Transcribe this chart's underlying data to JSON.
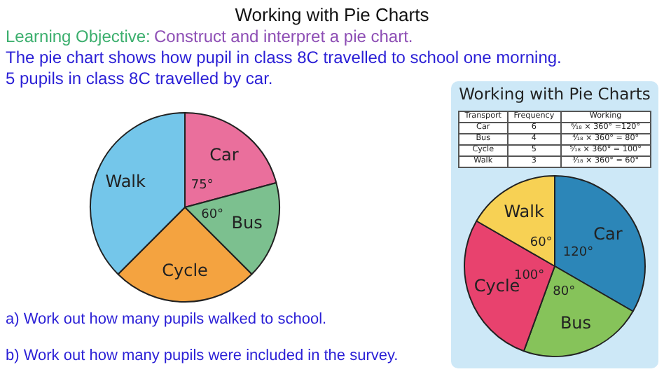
{
  "chart_data": [
    {
      "type": "pie",
      "title": "Working with Pie Charts",
      "categories": [
        "Car",
        "Bus",
        "Cycle",
        "Walk"
      ],
      "values": [
        75,
        60,
        90,
        135
      ],
      "colors": [
        "#ea6f9c",
        "#7cc08f",
        "#f4a340",
        "#74c6ea"
      ],
      "value_labels": [
        "75°",
        "60°",
        null,
        null
      ],
      "legend": false,
      "annotations": [
        "Learning Objective:",
        "Construct and interpret a pie chart.",
        "The pie chart shows how pupil in class 8C travelled to school one morning.",
        "5 pupils in class 8C travelled by car.",
        "a) Work out how many pupils walked to school.",
        "b) Work out how many pupils were included in the survey."
      ]
    },
    {
      "type": "pie",
      "title": "Working with Pie Charts",
      "categories": [
        "Car",
        "Bus",
        "Cycle",
        "Walk"
      ],
      "values": [
        120,
        80,
        100,
        60
      ],
      "colors": [
        "#2c86b8",
        "#86c35a",
        "#e8426e",
        "#f7d154"
      ],
      "value_labels": [
        "120°",
        "80°",
        "100°",
        "60°"
      ],
      "legend": false,
      "annotations": [
        "Transport",
        "Frequency",
        "Working",
        "Car",
        "6",
        "⁶⁄₁₈ × 360° =120°",
        "Bus",
        "4",
        "⁴⁄₁₈ × 360° = 80°",
        "Cycle",
        "5",
        "⁵⁄₁₈ × 360° = 100°",
        "Walk",
        "3",
        "³⁄₁₈ × 360° = 60°"
      ]
    }
  ]
}
